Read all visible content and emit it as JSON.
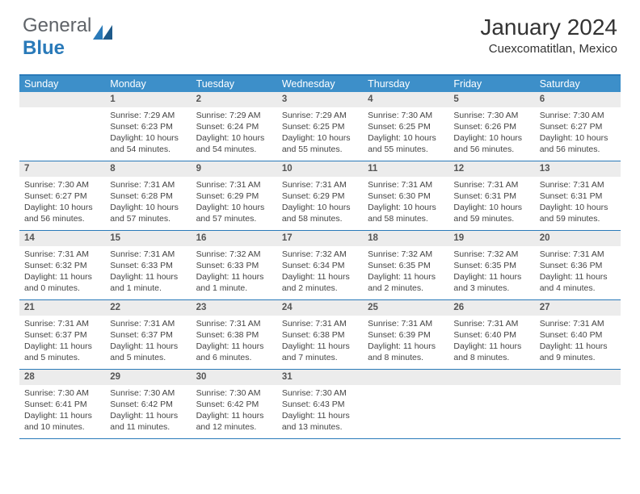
{
  "brand": {
    "general": "General",
    "blue": "Blue"
  },
  "title": "January 2024",
  "location": "Cuexcomatitlan, Mexico",
  "colors": {
    "header_bar": "#3d8fc9",
    "border": "#2a7ab9",
    "daynum_bg": "#ececec",
    "text": "#444444"
  },
  "weekdays": [
    "Sunday",
    "Monday",
    "Tuesday",
    "Wednesday",
    "Thursday",
    "Friday",
    "Saturday"
  ],
  "weeks": [
    [
      {
        "n": "",
        "sunrise": "",
        "sunset": "",
        "daylight": ""
      },
      {
        "n": "1",
        "sunrise": "Sunrise: 7:29 AM",
        "sunset": "Sunset: 6:23 PM",
        "daylight": "Daylight: 10 hours and 54 minutes."
      },
      {
        "n": "2",
        "sunrise": "Sunrise: 7:29 AM",
        "sunset": "Sunset: 6:24 PM",
        "daylight": "Daylight: 10 hours and 54 minutes."
      },
      {
        "n": "3",
        "sunrise": "Sunrise: 7:29 AM",
        "sunset": "Sunset: 6:25 PM",
        "daylight": "Daylight: 10 hours and 55 minutes."
      },
      {
        "n": "4",
        "sunrise": "Sunrise: 7:30 AM",
        "sunset": "Sunset: 6:25 PM",
        "daylight": "Daylight: 10 hours and 55 minutes."
      },
      {
        "n": "5",
        "sunrise": "Sunrise: 7:30 AM",
        "sunset": "Sunset: 6:26 PM",
        "daylight": "Daylight: 10 hours and 56 minutes."
      },
      {
        "n": "6",
        "sunrise": "Sunrise: 7:30 AM",
        "sunset": "Sunset: 6:27 PM",
        "daylight": "Daylight: 10 hours and 56 minutes."
      }
    ],
    [
      {
        "n": "7",
        "sunrise": "Sunrise: 7:30 AM",
        "sunset": "Sunset: 6:27 PM",
        "daylight": "Daylight: 10 hours and 56 minutes."
      },
      {
        "n": "8",
        "sunrise": "Sunrise: 7:31 AM",
        "sunset": "Sunset: 6:28 PM",
        "daylight": "Daylight: 10 hours and 57 minutes."
      },
      {
        "n": "9",
        "sunrise": "Sunrise: 7:31 AM",
        "sunset": "Sunset: 6:29 PM",
        "daylight": "Daylight: 10 hours and 57 minutes."
      },
      {
        "n": "10",
        "sunrise": "Sunrise: 7:31 AM",
        "sunset": "Sunset: 6:29 PM",
        "daylight": "Daylight: 10 hours and 58 minutes."
      },
      {
        "n": "11",
        "sunrise": "Sunrise: 7:31 AM",
        "sunset": "Sunset: 6:30 PM",
        "daylight": "Daylight: 10 hours and 58 minutes."
      },
      {
        "n": "12",
        "sunrise": "Sunrise: 7:31 AM",
        "sunset": "Sunset: 6:31 PM",
        "daylight": "Daylight: 10 hours and 59 minutes."
      },
      {
        "n": "13",
        "sunrise": "Sunrise: 7:31 AM",
        "sunset": "Sunset: 6:31 PM",
        "daylight": "Daylight: 10 hours and 59 minutes."
      }
    ],
    [
      {
        "n": "14",
        "sunrise": "Sunrise: 7:31 AM",
        "sunset": "Sunset: 6:32 PM",
        "daylight": "Daylight: 11 hours and 0 minutes."
      },
      {
        "n": "15",
        "sunrise": "Sunrise: 7:31 AM",
        "sunset": "Sunset: 6:33 PM",
        "daylight": "Daylight: 11 hours and 1 minute."
      },
      {
        "n": "16",
        "sunrise": "Sunrise: 7:32 AM",
        "sunset": "Sunset: 6:33 PM",
        "daylight": "Daylight: 11 hours and 1 minute."
      },
      {
        "n": "17",
        "sunrise": "Sunrise: 7:32 AM",
        "sunset": "Sunset: 6:34 PM",
        "daylight": "Daylight: 11 hours and 2 minutes."
      },
      {
        "n": "18",
        "sunrise": "Sunrise: 7:32 AM",
        "sunset": "Sunset: 6:35 PM",
        "daylight": "Daylight: 11 hours and 2 minutes."
      },
      {
        "n": "19",
        "sunrise": "Sunrise: 7:32 AM",
        "sunset": "Sunset: 6:35 PM",
        "daylight": "Daylight: 11 hours and 3 minutes."
      },
      {
        "n": "20",
        "sunrise": "Sunrise: 7:31 AM",
        "sunset": "Sunset: 6:36 PM",
        "daylight": "Daylight: 11 hours and 4 minutes."
      }
    ],
    [
      {
        "n": "21",
        "sunrise": "Sunrise: 7:31 AM",
        "sunset": "Sunset: 6:37 PM",
        "daylight": "Daylight: 11 hours and 5 minutes."
      },
      {
        "n": "22",
        "sunrise": "Sunrise: 7:31 AM",
        "sunset": "Sunset: 6:37 PM",
        "daylight": "Daylight: 11 hours and 5 minutes."
      },
      {
        "n": "23",
        "sunrise": "Sunrise: 7:31 AM",
        "sunset": "Sunset: 6:38 PM",
        "daylight": "Daylight: 11 hours and 6 minutes."
      },
      {
        "n": "24",
        "sunrise": "Sunrise: 7:31 AM",
        "sunset": "Sunset: 6:38 PM",
        "daylight": "Daylight: 11 hours and 7 minutes."
      },
      {
        "n": "25",
        "sunrise": "Sunrise: 7:31 AM",
        "sunset": "Sunset: 6:39 PM",
        "daylight": "Daylight: 11 hours and 8 minutes."
      },
      {
        "n": "26",
        "sunrise": "Sunrise: 7:31 AM",
        "sunset": "Sunset: 6:40 PM",
        "daylight": "Daylight: 11 hours and 8 minutes."
      },
      {
        "n": "27",
        "sunrise": "Sunrise: 7:31 AM",
        "sunset": "Sunset: 6:40 PM",
        "daylight": "Daylight: 11 hours and 9 minutes."
      }
    ],
    [
      {
        "n": "28",
        "sunrise": "Sunrise: 7:30 AM",
        "sunset": "Sunset: 6:41 PM",
        "daylight": "Daylight: 11 hours and 10 minutes."
      },
      {
        "n": "29",
        "sunrise": "Sunrise: 7:30 AM",
        "sunset": "Sunset: 6:42 PM",
        "daylight": "Daylight: 11 hours and 11 minutes."
      },
      {
        "n": "30",
        "sunrise": "Sunrise: 7:30 AM",
        "sunset": "Sunset: 6:42 PM",
        "daylight": "Daylight: 11 hours and 12 minutes."
      },
      {
        "n": "31",
        "sunrise": "Sunrise: 7:30 AM",
        "sunset": "Sunset: 6:43 PM",
        "daylight": "Daylight: 11 hours and 13 minutes."
      },
      {
        "n": "",
        "sunrise": "",
        "sunset": "",
        "daylight": ""
      },
      {
        "n": "",
        "sunrise": "",
        "sunset": "",
        "daylight": ""
      },
      {
        "n": "",
        "sunrise": "",
        "sunset": "",
        "daylight": ""
      }
    ]
  ]
}
